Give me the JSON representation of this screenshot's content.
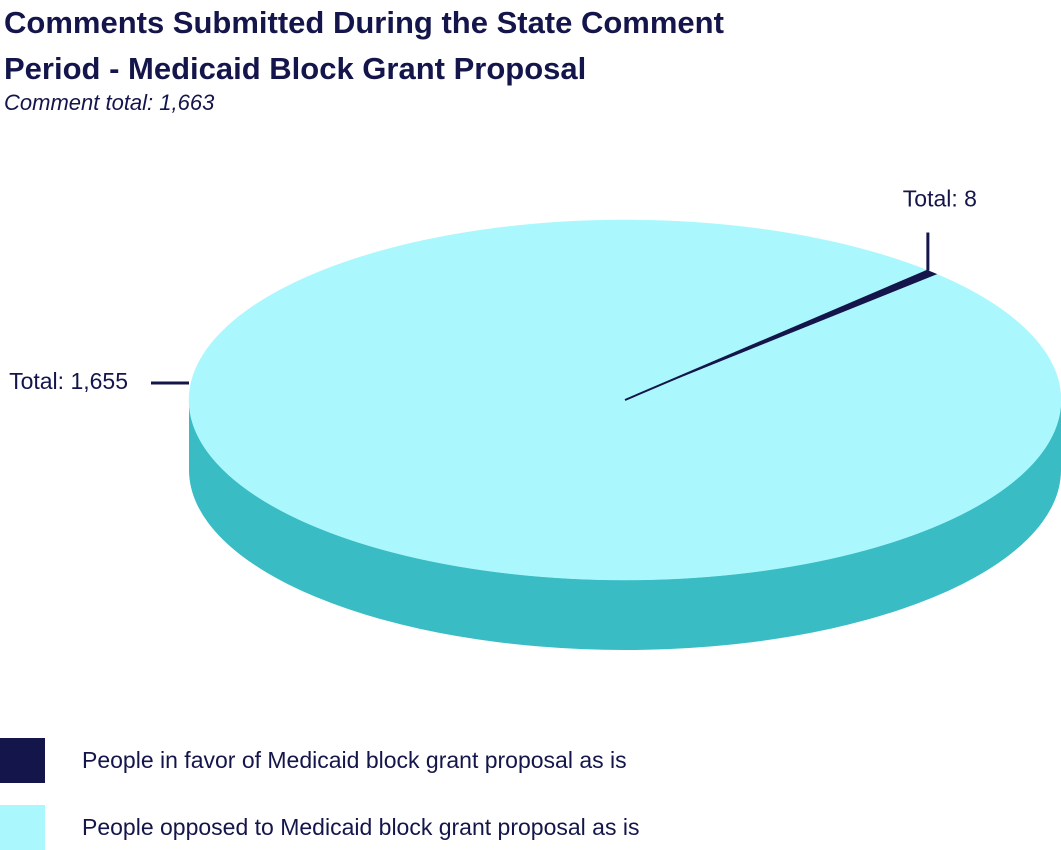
{
  "chart_data": {
    "type": "pie",
    "title": "Comments Submitted During the State Comment Period - Medicaid Block Grant Proposal",
    "subtitle": "Comment total: 1,663",
    "categories": [
      "People in favor of Medicaid block grant proposal as is",
      "People opposed to Medicaid block grant proposal as is"
    ],
    "values": [
      8,
      1655
    ],
    "value_labels": [
      "Total: 8",
      "Total: 1,655"
    ],
    "colors": [
      "#14154a",
      "#aaf8fd"
    ]
  }
}
